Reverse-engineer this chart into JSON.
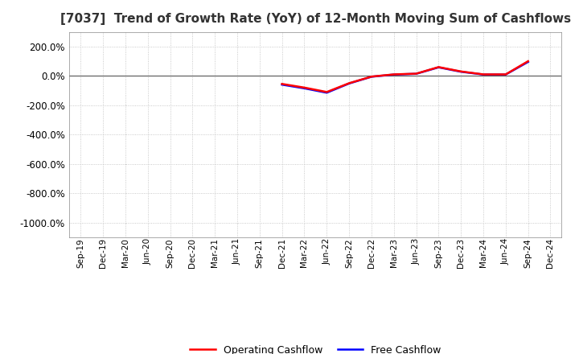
{
  "title": "[7037]  Trend of Growth Rate (YoY) of 12-Month Moving Sum of Cashflows",
  "title_fontsize": 11,
  "ylim": [
    -1100,
    300
  ],
  "yticks": [
    200,
    0,
    -200,
    -400,
    -600,
    -800,
    -1000
  ],
  "background_color": "#ffffff",
  "grid_color": "#bbbbbb",
  "legend_labels": [
    "Operating Cashflow",
    "Free Cashflow"
  ],
  "legend_colors": [
    "#ff0000",
    "#0000ff"
  ],
  "x_labels": [
    "Sep-19",
    "Dec-19",
    "Mar-20",
    "Jun-20",
    "Sep-20",
    "Dec-20",
    "Mar-21",
    "Jun-21",
    "Sep-21",
    "Dec-21",
    "Mar-22",
    "Jun-22",
    "Sep-22",
    "Dec-22",
    "Mar-23",
    "Jun-23",
    "Sep-23",
    "Dec-23",
    "Mar-24",
    "Jun-24",
    "Sep-24",
    "Dec-24"
  ],
  "operating_cashflow": [
    null,
    null,
    null,
    null,
    null,
    null,
    null,
    null,
    null,
    -55,
    -80,
    -110,
    -50,
    -5,
    10,
    15,
    60,
    30,
    10,
    10,
    100,
    null
  ],
  "free_cashflow": [
    null,
    null,
    null,
    null,
    null,
    null,
    null,
    null,
    null,
    -60,
    -85,
    -115,
    -52,
    -6,
    9,
    14,
    58,
    28,
    9,
    9,
    95,
    null
  ],
  "line_width": 1.8,
  "tick_fontsize": 7.5,
  "ytick_fontsize": 8.5
}
